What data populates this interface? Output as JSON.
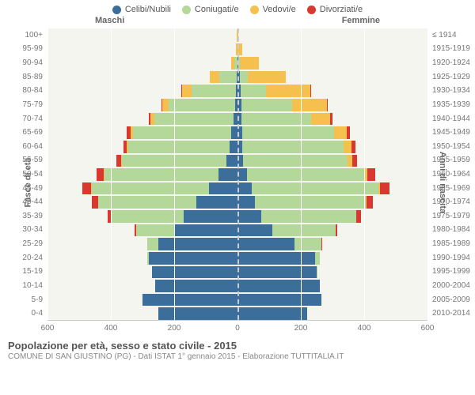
{
  "type": "population-pyramid",
  "legend": [
    {
      "label": "Celibi/Nubili",
      "color": "#3b6e9b"
    },
    {
      "label": "Coniugati/e",
      "color": "#b4d89a"
    },
    {
      "label": "Vedovi/e",
      "color": "#f5c04e"
    },
    {
      "label": "Divorziati/e",
      "color": "#d73930"
    }
  ],
  "header": {
    "male": "Maschi",
    "female": "Femmine"
  },
  "axes": {
    "x": {
      "min": -600,
      "max": 600,
      "ticks": [
        -600,
        -400,
        -200,
        0,
        200,
        400,
        600
      ],
      "labels": [
        "600",
        "400",
        "200",
        "0",
        "200",
        "400",
        "600"
      ]
    },
    "y_left_title": "Fasce di età",
    "y_right_title": "Anni di nascita"
  },
  "colors": {
    "single": "#3b6e9b",
    "married": "#b4d89a",
    "widowed": "#f5c04e",
    "divorced": "#d73930",
    "plot_bg": "#f5f5f0",
    "grid": "#ffffff",
    "center": "#cccccc",
    "text": "#777"
  },
  "age_groups": [
    {
      "age": "100+",
      "birth": "≤ 1914",
      "m": {
        "s": 0,
        "c": 0,
        "v": 2,
        "d": 0
      },
      "f": {
        "s": 0,
        "c": 0,
        "v": 3,
        "d": 0
      }
    },
    {
      "age": "95-99",
      "birth": "1915-1919",
      "m": {
        "s": 0,
        "c": 0,
        "v": 4,
        "d": 0
      },
      "f": {
        "s": 0,
        "c": 0,
        "v": 15,
        "d": 0
      }
    },
    {
      "age": "90-94",
      "birth": "1920-1924",
      "m": {
        "s": 1,
        "c": 10,
        "v": 10,
        "d": 0
      },
      "f": {
        "s": 3,
        "c": 5,
        "v": 60,
        "d": 0
      }
    },
    {
      "age": "85-89",
      "birth": "1925-1929",
      "m": {
        "s": 3,
        "c": 55,
        "v": 30,
        "d": 0
      },
      "f": {
        "s": 8,
        "c": 25,
        "v": 120,
        "d": 0
      }
    },
    {
      "age": "80-84",
      "birth": "1930-1934",
      "m": {
        "s": 5,
        "c": 140,
        "v": 30,
        "d": 2
      },
      "f": {
        "s": 10,
        "c": 80,
        "v": 140,
        "d": 2
      }
    },
    {
      "age": "75-79",
      "birth": "1935-1939",
      "m": {
        "s": 8,
        "c": 210,
        "v": 20,
        "d": 3
      },
      "f": {
        "s": 12,
        "c": 160,
        "v": 110,
        "d": 3
      }
    },
    {
      "age": "70-74",
      "birth": "1940-1944",
      "m": {
        "s": 12,
        "c": 250,
        "v": 12,
        "d": 6
      },
      "f": {
        "s": 12,
        "c": 220,
        "v": 60,
        "d": 8
      }
    },
    {
      "age": "65-69",
      "birth": "1945-1949",
      "m": {
        "s": 20,
        "c": 310,
        "v": 8,
        "d": 12
      },
      "f": {
        "s": 15,
        "c": 290,
        "v": 40,
        "d": 10
      }
    },
    {
      "age": "60-64",
      "birth": "1950-1954",
      "m": {
        "s": 25,
        "c": 320,
        "v": 5,
        "d": 10
      },
      "f": {
        "s": 15,
        "c": 320,
        "v": 25,
        "d": 12
      }
    },
    {
      "age": "55-59",
      "birth": "1955-1959",
      "m": {
        "s": 35,
        "c": 330,
        "v": 3,
        "d": 15
      },
      "f": {
        "s": 18,
        "c": 330,
        "v": 15,
        "d": 15
      }
    },
    {
      "age": "50-54",
      "birth": "1960-1964",
      "m": {
        "s": 60,
        "c": 360,
        "v": 3,
        "d": 22
      },
      "f": {
        "s": 30,
        "c": 370,
        "v": 10,
        "d": 25
      }
    },
    {
      "age": "45-49",
      "birth": "1965-1969",
      "m": {
        "s": 90,
        "c": 370,
        "v": 2,
        "d": 28
      },
      "f": {
        "s": 45,
        "c": 400,
        "v": 6,
        "d": 28
      }
    },
    {
      "age": "40-44",
      "birth": "1970-1974",
      "m": {
        "s": 130,
        "c": 310,
        "v": 1,
        "d": 18
      },
      "f": {
        "s": 55,
        "c": 350,
        "v": 3,
        "d": 20
      }
    },
    {
      "age": "35-39",
      "birth": "1975-1979",
      "m": {
        "s": 170,
        "c": 230,
        "v": 0,
        "d": 10
      },
      "f": {
        "s": 75,
        "c": 300,
        "v": 1,
        "d": 14
      }
    },
    {
      "age": "30-34",
      "birth": "1980-1984",
      "m": {
        "s": 200,
        "c": 120,
        "v": 0,
        "d": 4
      },
      "f": {
        "s": 110,
        "c": 200,
        "v": 0,
        "d": 5
      }
    },
    {
      "age": "25-29",
      "birth": "1985-1989",
      "m": {
        "s": 250,
        "c": 35,
        "v": 0,
        "d": 1
      },
      "f": {
        "s": 180,
        "c": 85,
        "v": 0,
        "d": 2
      }
    },
    {
      "age": "20-24",
      "birth": "1990-1994",
      "m": {
        "s": 280,
        "c": 5,
        "v": 0,
        "d": 0
      },
      "f": {
        "s": 245,
        "c": 15,
        "v": 0,
        "d": 0
      }
    },
    {
      "age": "15-19",
      "birth": "1995-1999",
      "m": {
        "s": 270,
        "c": 0,
        "v": 0,
        "d": 0
      },
      "f": {
        "s": 250,
        "c": 1,
        "v": 0,
        "d": 0
      }
    },
    {
      "age": "10-14",
      "birth": "2000-2004",
      "m": {
        "s": 260,
        "c": 0,
        "v": 0,
        "d": 0
      },
      "f": {
        "s": 260,
        "c": 0,
        "v": 0,
        "d": 0
      }
    },
    {
      "age": "5-9",
      "birth": "2005-2009",
      "m": {
        "s": 300,
        "c": 0,
        "v": 0,
        "d": 0
      },
      "f": {
        "s": 265,
        "c": 0,
        "v": 0,
        "d": 0
      }
    },
    {
      "age": "0-4",
      "birth": "2010-2014",
      "m": {
        "s": 250,
        "c": 0,
        "v": 0,
        "d": 0
      },
      "f": {
        "s": 220,
        "c": 0,
        "v": 0,
        "d": 0
      }
    }
  ],
  "footer": {
    "title": "Popolazione per età, sesso e stato civile - 2015",
    "subtitle": "COMUNE DI SAN GIUSTINO (PG) - Dati ISTAT 1° gennaio 2015 - Elaborazione TUTTITALIA.IT"
  }
}
